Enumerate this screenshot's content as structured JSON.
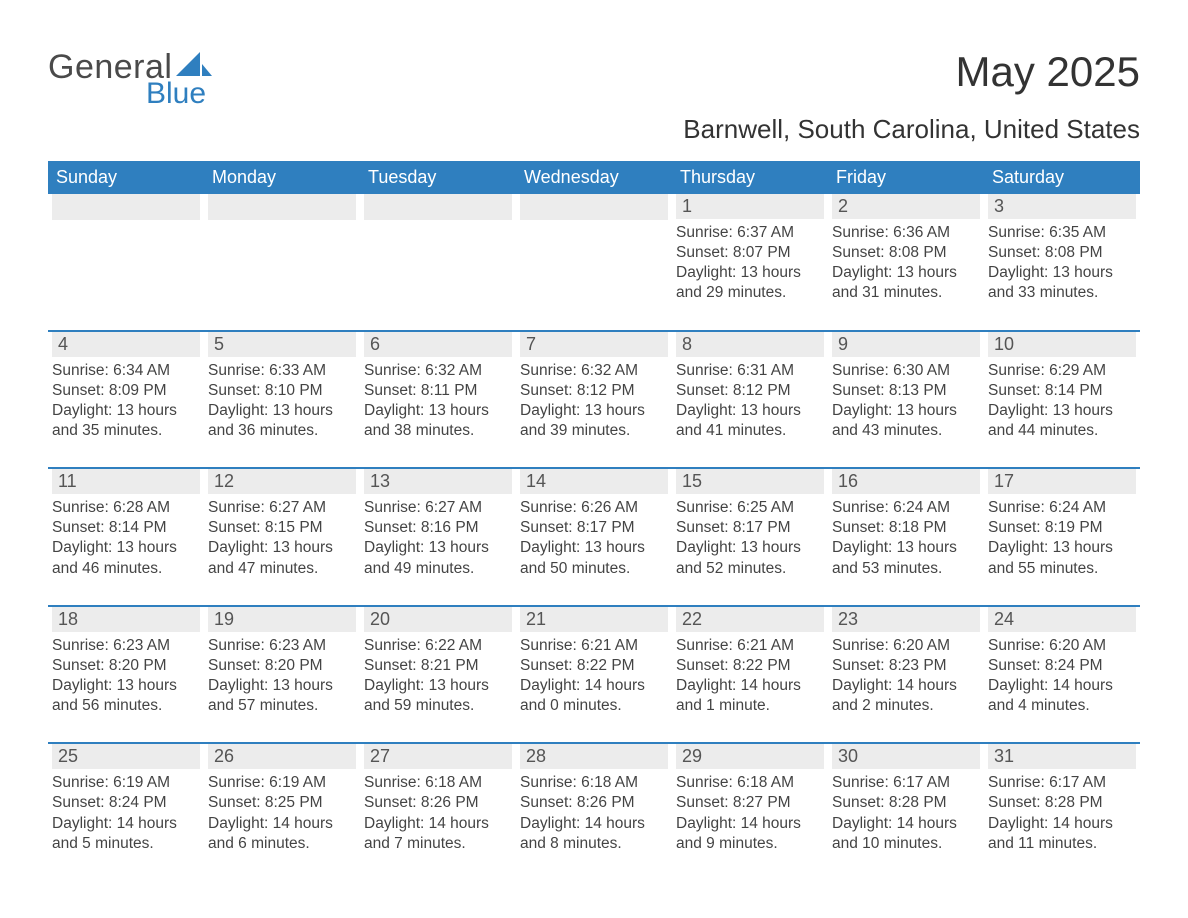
{
  "logo": {
    "text_general": "General",
    "text_blue": "Blue",
    "sail_color": "#2f7fbf"
  },
  "header": {
    "month_title": "May 2025",
    "location": "Barnwell, South Carolina, United States"
  },
  "colors": {
    "header_bar": "#2f7fbf",
    "daynum_bg": "#ececec",
    "text": "#3a3a3a",
    "background": "#ffffff"
  },
  "typography": {
    "month_title_fontsize": 42,
    "location_fontsize": 26,
    "dow_fontsize": 18,
    "daynum_fontsize": 18,
    "body_fontsize": 15.5,
    "font_family": "Arial"
  },
  "days_of_week": [
    "Sunday",
    "Monday",
    "Tuesday",
    "Wednesday",
    "Thursday",
    "Friday",
    "Saturday"
  ],
  "weeks": [
    [
      {
        "num": "",
        "sunrise": "",
        "sunset": "",
        "daylight_l1": "",
        "daylight_l2": ""
      },
      {
        "num": "",
        "sunrise": "",
        "sunset": "",
        "daylight_l1": "",
        "daylight_l2": ""
      },
      {
        "num": "",
        "sunrise": "",
        "sunset": "",
        "daylight_l1": "",
        "daylight_l2": ""
      },
      {
        "num": "",
        "sunrise": "",
        "sunset": "",
        "daylight_l1": "",
        "daylight_l2": ""
      },
      {
        "num": "1",
        "sunrise": "Sunrise: 6:37 AM",
        "sunset": "Sunset: 8:07 PM",
        "daylight_l1": "Daylight: 13 hours",
        "daylight_l2": "and 29 minutes."
      },
      {
        "num": "2",
        "sunrise": "Sunrise: 6:36 AM",
        "sunset": "Sunset: 8:08 PM",
        "daylight_l1": "Daylight: 13 hours",
        "daylight_l2": "and 31 minutes."
      },
      {
        "num": "3",
        "sunrise": "Sunrise: 6:35 AM",
        "sunset": "Sunset: 8:08 PM",
        "daylight_l1": "Daylight: 13 hours",
        "daylight_l2": "and 33 minutes."
      }
    ],
    [
      {
        "num": "4",
        "sunrise": "Sunrise: 6:34 AM",
        "sunset": "Sunset: 8:09 PM",
        "daylight_l1": "Daylight: 13 hours",
        "daylight_l2": "and 35 minutes."
      },
      {
        "num": "5",
        "sunrise": "Sunrise: 6:33 AM",
        "sunset": "Sunset: 8:10 PM",
        "daylight_l1": "Daylight: 13 hours",
        "daylight_l2": "and 36 minutes."
      },
      {
        "num": "6",
        "sunrise": "Sunrise: 6:32 AM",
        "sunset": "Sunset: 8:11 PM",
        "daylight_l1": "Daylight: 13 hours",
        "daylight_l2": "and 38 minutes."
      },
      {
        "num": "7",
        "sunrise": "Sunrise: 6:32 AM",
        "sunset": "Sunset: 8:12 PM",
        "daylight_l1": "Daylight: 13 hours",
        "daylight_l2": "and 39 minutes."
      },
      {
        "num": "8",
        "sunrise": "Sunrise: 6:31 AM",
        "sunset": "Sunset: 8:12 PM",
        "daylight_l1": "Daylight: 13 hours",
        "daylight_l2": "and 41 minutes."
      },
      {
        "num": "9",
        "sunrise": "Sunrise: 6:30 AM",
        "sunset": "Sunset: 8:13 PM",
        "daylight_l1": "Daylight: 13 hours",
        "daylight_l2": "and 43 minutes."
      },
      {
        "num": "10",
        "sunrise": "Sunrise: 6:29 AM",
        "sunset": "Sunset: 8:14 PM",
        "daylight_l1": "Daylight: 13 hours",
        "daylight_l2": "and 44 minutes."
      }
    ],
    [
      {
        "num": "11",
        "sunrise": "Sunrise: 6:28 AM",
        "sunset": "Sunset: 8:14 PM",
        "daylight_l1": "Daylight: 13 hours",
        "daylight_l2": "and 46 minutes."
      },
      {
        "num": "12",
        "sunrise": "Sunrise: 6:27 AM",
        "sunset": "Sunset: 8:15 PM",
        "daylight_l1": "Daylight: 13 hours",
        "daylight_l2": "and 47 minutes."
      },
      {
        "num": "13",
        "sunrise": "Sunrise: 6:27 AM",
        "sunset": "Sunset: 8:16 PM",
        "daylight_l1": "Daylight: 13 hours",
        "daylight_l2": "and 49 minutes."
      },
      {
        "num": "14",
        "sunrise": "Sunrise: 6:26 AM",
        "sunset": "Sunset: 8:17 PM",
        "daylight_l1": "Daylight: 13 hours",
        "daylight_l2": "and 50 minutes."
      },
      {
        "num": "15",
        "sunrise": "Sunrise: 6:25 AM",
        "sunset": "Sunset: 8:17 PM",
        "daylight_l1": "Daylight: 13 hours",
        "daylight_l2": "and 52 minutes."
      },
      {
        "num": "16",
        "sunrise": "Sunrise: 6:24 AM",
        "sunset": "Sunset: 8:18 PM",
        "daylight_l1": "Daylight: 13 hours",
        "daylight_l2": "and 53 minutes."
      },
      {
        "num": "17",
        "sunrise": "Sunrise: 6:24 AM",
        "sunset": "Sunset: 8:19 PM",
        "daylight_l1": "Daylight: 13 hours",
        "daylight_l2": "and 55 minutes."
      }
    ],
    [
      {
        "num": "18",
        "sunrise": "Sunrise: 6:23 AM",
        "sunset": "Sunset: 8:20 PM",
        "daylight_l1": "Daylight: 13 hours",
        "daylight_l2": "and 56 minutes."
      },
      {
        "num": "19",
        "sunrise": "Sunrise: 6:23 AM",
        "sunset": "Sunset: 8:20 PM",
        "daylight_l1": "Daylight: 13 hours",
        "daylight_l2": "and 57 minutes."
      },
      {
        "num": "20",
        "sunrise": "Sunrise: 6:22 AM",
        "sunset": "Sunset: 8:21 PM",
        "daylight_l1": "Daylight: 13 hours",
        "daylight_l2": "and 59 minutes."
      },
      {
        "num": "21",
        "sunrise": "Sunrise: 6:21 AM",
        "sunset": "Sunset: 8:22 PM",
        "daylight_l1": "Daylight: 14 hours",
        "daylight_l2": "and 0 minutes."
      },
      {
        "num": "22",
        "sunrise": "Sunrise: 6:21 AM",
        "sunset": "Sunset: 8:22 PM",
        "daylight_l1": "Daylight: 14 hours",
        "daylight_l2": "and 1 minute."
      },
      {
        "num": "23",
        "sunrise": "Sunrise: 6:20 AM",
        "sunset": "Sunset: 8:23 PM",
        "daylight_l1": "Daylight: 14 hours",
        "daylight_l2": "and 2 minutes."
      },
      {
        "num": "24",
        "sunrise": "Sunrise: 6:20 AM",
        "sunset": "Sunset: 8:24 PM",
        "daylight_l1": "Daylight: 14 hours",
        "daylight_l2": "and 4 minutes."
      }
    ],
    [
      {
        "num": "25",
        "sunrise": "Sunrise: 6:19 AM",
        "sunset": "Sunset: 8:24 PM",
        "daylight_l1": "Daylight: 14 hours",
        "daylight_l2": "and 5 minutes."
      },
      {
        "num": "26",
        "sunrise": "Sunrise: 6:19 AM",
        "sunset": "Sunset: 8:25 PM",
        "daylight_l1": "Daylight: 14 hours",
        "daylight_l2": "and 6 minutes."
      },
      {
        "num": "27",
        "sunrise": "Sunrise: 6:18 AM",
        "sunset": "Sunset: 8:26 PM",
        "daylight_l1": "Daylight: 14 hours",
        "daylight_l2": "and 7 minutes."
      },
      {
        "num": "28",
        "sunrise": "Sunrise: 6:18 AM",
        "sunset": "Sunset: 8:26 PM",
        "daylight_l1": "Daylight: 14 hours",
        "daylight_l2": "and 8 minutes."
      },
      {
        "num": "29",
        "sunrise": "Sunrise: 6:18 AM",
        "sunset": "Sunset: 8:27 PM",
        "daylight_l1": "Daylight: 14 hours",
        "daylight_l2": "and 9 minutes."
      },
      {
        "num": "30",
        "sunrise": "Sunrise: 6:17 AM",
        "sunset": "Sunset: 8:28 PM",
        "daylight_l1": "Daylight: 14 hours",
        "daylight_l2": "and 10 minutes."
      },
      {
        "num": "31",
        "sunrise": "Sunrise: 6:17 AM",
        "sunset": "Sunset: 8:28 PM",
        "daylight_l1": "Daylight: 14 hours",
        "daylight_l2": "and 11 minutes."
      }
    ]
  ]
}
